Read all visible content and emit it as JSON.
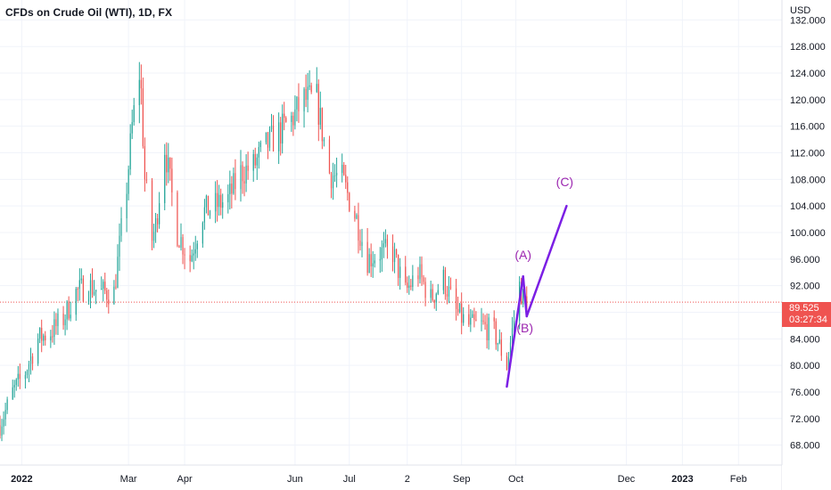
{
  "header": {
    "title": "CFDs on Crude Oil (WTI), 1D, FX"
  },
  "price_scale": {
    "currency": "USD",
    "last_price": "89.525",
    "countdown": "03:27:34"
  },
  "colors": {
    "up": "#26a69a",
    "down": "#ef5350",
    "grid": "#f0f3fa",
    "wave": "#9c27b0",
    "wave_line": "#7b1fe4",
    "price_line": "#ef5350"
  },
  "chart_data": {
    "type": "candlestick",
    "title": "CFDs on Crude Oil (WTI), 1D, FX",
    "y_axis": {
      "unit": "USD",
      "ticks": [
        132,
        128,
        124,
        120,
        116,
        112,
        108,
        104,
        100,
        96,
        92,
        88,
        84,
        80,
        76,
        72,
        68
      ],
      "tick_labels": [
        "132.000",
        "128.000",
        "124.000",
        "120.000",
        "116.000",
        "112.000",
        "108.000",
        "104.000",
        "100.000",
        "96.000",
        "92.000",
        "",
        "84.000",
        "80.000",
        "76.000",
        "72.000",
        "68.000"
      ],
      "range": [
        65,
        135
      ]
    },
    "x_axis": {
      "ticks": [
        "2022-01-01",
        "2022-03-01",
        "2022-04-01",
        "2022-06-01",
        "2022-07-01",
        "2022-08-02",
        "2022-09-01",
        "2022-10-01",
        "2022-12-01",
        "2023-01-01",
        "2023-02-01"
      ],
      "tick_labels": [
        "2022",
        "Mar",
        "Apr",
        "Jun",
        "Jul",
        "2",
        "Sep",
        "Oct",
        "Dec",
        "2023",
        "Feb"
      ],
      "range": [
        "2021-12-20",
        "2023-02-25"
      ]
    },
    "grid": true,
    "price_series": {
      "name": "CFDs on Crude Oil (WTI)",
      "interval": "1D",
      "dates": [
        "2021-12-20",
        "2021-12-27",
        "2022-01-03",
        "2022-01-10",
        "2022-01-17",
        "2022-01-24",
        "2022-01-31",
        "2022-02-07",
        "2022-02-14",
        "2022-02-21",
        "2022-02-28",
        "2022-03-03",
        "2022-03-07",
        "2022-03-08",
        "2022-03-10",
        "2022-03-14",
        "2022-03-16",
        "2022-03-21",
        "2022-03-28",
        "2022-04-04",
        "2022-04-11",
        "2022-04-18",
        "2022-04-25",
        "2022-05-02",
        "2022-05-09",
        "2022-05-16",
        "2022-05-23",
        "2022-05-30",
        "2022-06-06",
        "2022-06-13",
        "2022-06-20",
        "2022-06-27",
        "2022-07-05",
        "2022-07-11",
        "2022-07-18",
        "2022-07-25",
        "2022-08-01",
        "2022-08-08",
        "2022-08-15",
        "2022-08-22",
        "2022-08-29",
        "2022-09-05",
        "2022-09-12",
        "2022-09-19",
        "2022-09-26",
        "2022-10-03",
        "2022-10-05",
        "2022-10-07"
      ],
      "close": [
        71,
        76,
        79,
        84,
        85,
        87,
        91,
        92,
        91,
        91,
        107,
        116,
        124,
        121,
        108,
        99,
        101,
        113,
        100,
        96,
        103,
        104,
        105,
        109,
        110,
        113,
        115,
        117,
        120,
        120,
        109,
        108,
        102,
        96,
        97,
        97,
        91,
        94,
        90,
        93,
        88,
        86,
        86,
        85,
        80,
        92,
        90,
        89.5
      ]
    },
    "wave_labels": [
      {
        "label": "(A)",
        "x": "2022-10-05",
        "y": 96
      },
      {
        "label": "(B)",
        "x": "2022-10-06",
        "y": 85
      },
      {
        "label": "(C)",
        "x": "2022-10-28",
        "y": 107
      }
    ],
    "projection": [
      {
        "x": "2022-09-26",
        "y": 76.8
      },
      {
        "x": "2022-10-05",
        "y": 93.4
      },
      {
        "x": "2022-10-07",
        "y": 87.4
      },
      {
        "x": "2022-10-29",
        "y": 104
      }
    ]
  }
}
